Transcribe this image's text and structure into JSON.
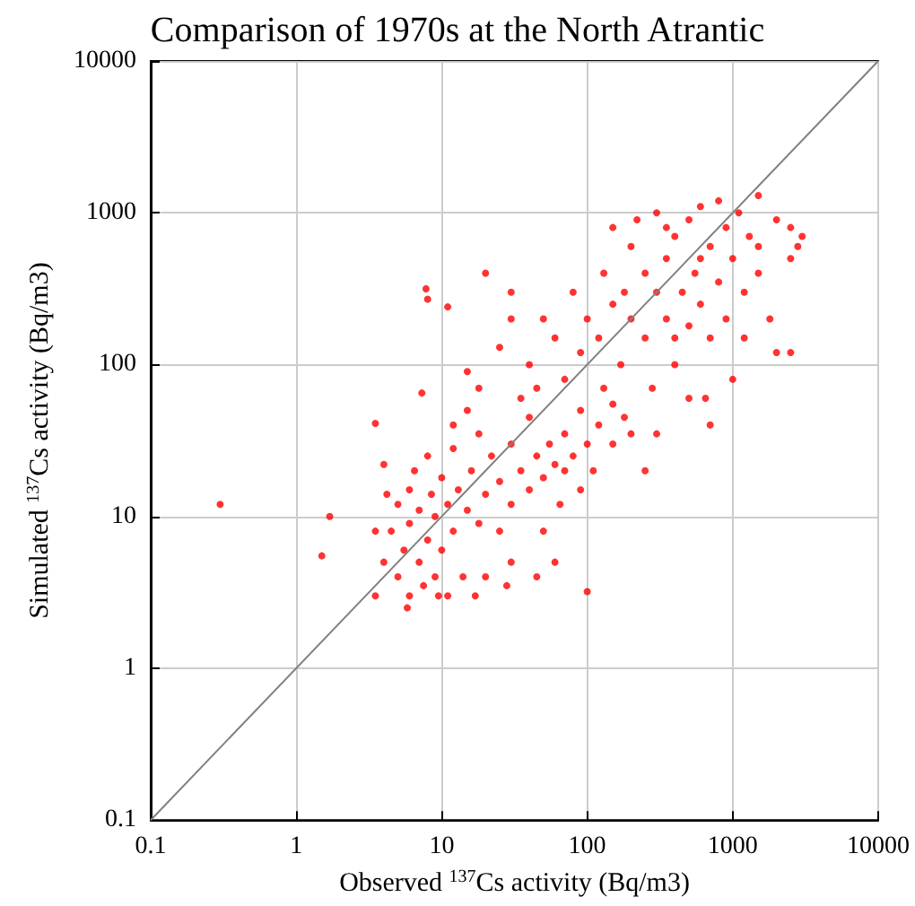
{
  "chart_data": {
    "type": "scatter",
    "title": "Comparison of 1970s at the North Atrantic",
    "xlabel": "Observed $^{137}$Cs activity (Bq/m3)",
    "ylabel": "Simulated $^{137}$Cs activity (Bq/m3)",
    "log": "xy",
    "grid": true,
    "marker": "circle",
    "xlim": [
      0.1,
      10000
    ],
    "ylim": [
      0.1,
      10000
    ],
    "xticks": [
      0.1,
      1,
      10,
      100,
      1000,
      10000
    ],
    "yticks": [
      0.1,
      1,
      10,
      100,
      1000,
      10000
    ],
    "series": [
      {
        "type": "line",
        "color": "#808080",
        "marker": "none",
        "x": [
          0.1,
          10000
        ],
        "values": [
          0.1,
          10000
        ]
      },
      {
        "color": "#ff0000",
        "x": [
          0.3,
          1.5,
          1.7,
          3.5,
          4,
          4.5,
          5,
          5,
          5.5,
          6,
          6,
          6,
          6.5,
          7,
          7,
          7.5,
          8,
          8,
          8.5,
          9,
          9,
          10,
          10,
          11,
          11,
          12,
          12,
          13,
          14,
          15,
          16,
          17,
          18,
          20,
          20,
          4.2,
          3.5,
          5.8,
          9.5,
          4,
          3.5,
          22,
          25,
          28,
          30,
          30,
          35,
          40,
          40,
          45,
          50,
          50,
          55,
          60,
          65,
          70,
          70,
          80,
          90,
          90,
          100,
          100,
          110,
          120,
          130,
          150,
          150,
          180,
          200,
          60,
          45,
          25,
          35,
          30,
          18,
          15,
          12,
          7.8,
          8,
          11,
          20,
          7.3,
          15,
          25,
          30,
          40,
          50,
          60,
          70,
          80,
          90,
          100,
          30,
          45,
          18,
          120,
          130,
          150,
          150,
          170,
          200,
          200,
          220,
          250,
          250,
          280,
          300,
          300,
          350,
          350,
          400,
          400,
          450,
          500,
          500,
          550,
          600,
          600,
          650,
          700,
          700,
          800,
          800,
          900,
          900,
          1000,
          1100,
          1200,
          1300,
          1500,
          1500,
          1800,
          2000,
          2000,
          2500,
          2500,
          2800,
          3000,
          2500,
          1000,
          700,
          500,
          300,
          250,
          400,
          600,
          1200,
          350,
          180,
          1500
        ],
        "values": [
          12,
          5.5,
          10,
          41,
          5,
          8,
          4,
          12,
          6,
          3,
          9,
          15,
          20,
          5,
          11,
          3.5,
          7,
          25,
          14,
          4,
          10,
          18,
          6,
          3,
          12,
          28,
          8,
          15,
          4,
          11,
          20,
          3,
          9,
          14,
          4,
          14,
          3,
          2.5,
          3,
          22,
          8,
          25,
          17,
          3.5,
          12,
          30,
          20,
          15,
          45,
          25,
          18,
          8,
          30,
          22,
          12,
          35,
          20,
          25,
          15,
          50,
          3.2,
          30,
          20,
          40,
          70,
          30,
          55,
          45,
          35,
          5,
          4,
          8,
          60,
          5,
          35,
          50,
          40,
          316,
          270,
          240,
          400,
          65,
          90,
          130,
          200,
          100,
          200,
          150,
          80,
          300,
          120,
          200,
          300,
          70,
          70,
          150,
          400,
          250,
          800,
          100,
          600,
          200,
          900,
          150,
          400,
          70,
          300,
          1000,
          500,
          200,
          100,
          700,
          300,
          900,
          180,
          400,
          1100,
          250,
          60,
          600,
          150,
          350,
          1200,
          800,
          200,
          500,
          1000,
          300,
          700,
          1300,
          400,
          200,
          900,
          120,
          500,
          800,
          600,
          700,
          120,
          80,
          40,
          60,
          35,
          20,
          150,
          500,
          150,
          800,
          300,
          600
        ]
      }
    ]
  }
}
